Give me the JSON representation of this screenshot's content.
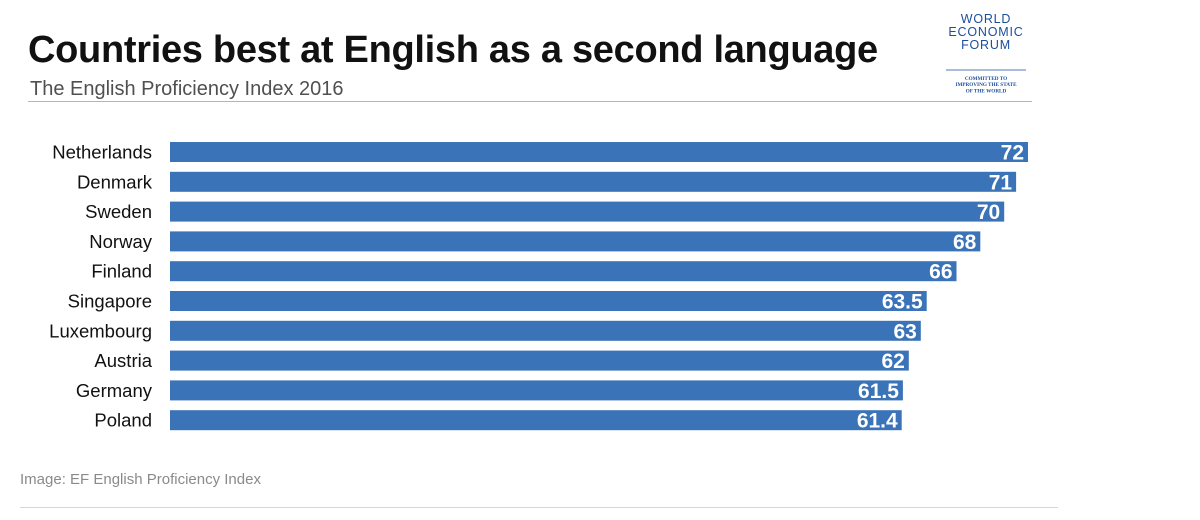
{
  "page": {
    "caption": "Image: EF English Proficiency Index"
  },
  "logo": {
    "lines": [
      "WORLD",
      "ECONOMIC",
      "FORUM"
    ],
    "tagline": [
      "COMMITTED TO",
      "IMPROVING THE STATE",
      "OF THE WORLD"
    ],
    "color": "#1b4e9b"
  },
  "colors": {
    "bar": "#3a73b7",
    "bar_label": "#ffffff",
    "category_label": "#111111"
  },
  "chart_data": {
    "type": "bar",
    "orientation": "horizontal",
    "title": "Countries best at English as a second language",
    "subtitle": "The English Proficiency Index 2016",
    "xlabel": "",
    "ylabel": "",
    "grid": false,
    "legend": "none",
    "xlim": [
      0,
      72
    ],
    "categories": [
      "Netherlands",
      "Denmark",
      "Sweden",
      "Norway",
      "Finland",
      "Singapore",
      "Luxembourg",
      "Austria",
      "Germany",
      "Poland"
    ],
    "values": [
      72,
      71,
      70,
      68,
      66,
      63.5,
      63,
      62,
      61.5,
      61.4
    ],
    "value_labels": [
      "72",
      "71",
      "70",
      "68",
      "66",
      "63.5",
      "63",
      "62",
      "61.5",
      "61.4"
    ]
  }
}
